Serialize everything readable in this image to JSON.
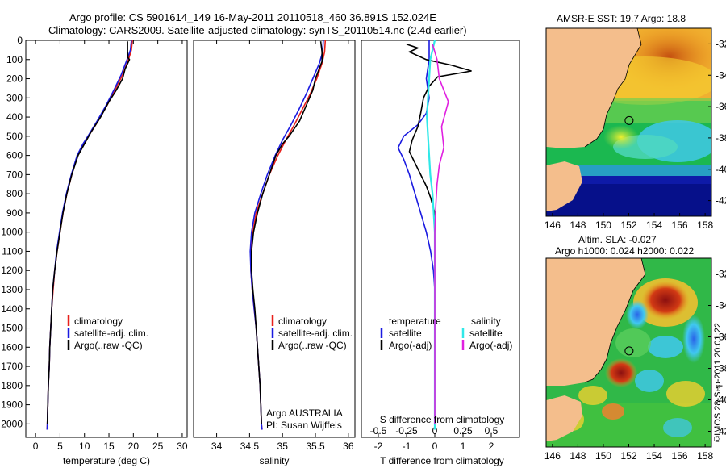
{
  "header": {
    "title_line1": "Argo profile: CS 5901614_149 16-May-2011 20110518_460 36.891S 152.024E",
    "title_line2": "Climatology: CARS2009. Satellite-adjusted climatology: synTS_20110514.nc (2.4d earlier)"
  },
  "map_top": {
    "title": "AMSR-E SST: 19.7 Argo: 18.8"
  },
  "map_bottom": {
    "title_line1": "Altim. SLA: -0.027",
    "title_line2": "Argo h1000: 0.024 h2000: 0.022"
  },
  "stamp": "©IMOS 28-Sep-2011 20:01:22",
  "colors": {
    "climatology": "#e8201c",
    "satellite": "#1a1ae0",
    "argo": "#000000",
    "sal_satellite": "#30e8e8",
    "sal_argo": "#e020e0",
    "land": "#f4be8c"
  },
  "chart_data": [
    {
      "type": "line",
      "panel": "temperature",
      "xlabel": "temperature (deg C)",
      "ylabel": "",
      "xlim": [
        -2,
        31
      ],
      "ylim": [
        2070,
        0
      ],
      "xticks": [
        0,
        5,
        10,
        15,
        20,
        25,
        30
      ],
      "yticks": [
        0,
        100,
        200,
        300,
        400,
        500,
        600,
        700,
        800,
        900,
        1000,
        1100,
        1200,
        1300,
        1400,
        1500,
        1600,
        1700,
        1800,
        1900,
        2000
      ],
      "legend": [
        "climatology",
        "satellite-adj. clim.",
        "Argo(..raw -QC)"
      ],
      "series": [
        {
          "name": "climatology",
          "points": [
            [
              19.8,
              0
            ],
            [
              19.6,
              50
            ],
            [
              19.0,
              100
            ],
            [
              17.8,
              180
            ],
            [
              16.2,
              260
            ],
            [
              14.6,
              340
            ],
            [
              12.8,
              420
            ],
            [
              10.8,
              500
            ],
            [
              9.8,
              540
            ],
            [
              8.6,
              600
            ],
            [
              7.4,
              700
            ],
            [
              6.4,
              800
            ],
            [
              5.6,
              900
            ],
            [
              5.0,
              1000
            ],
            [
              4.4,
              1100
            ],
            [
              3.9,
              1200
            ],
            [
              3.6,
              1300
            ],
            [
              3.3,
              1400
            ],
            [
              3.1,
              1500
            ],
            [
              2.9,
              1600
            ],
            [
              2.8,
              1700
            ],
            [
              2.6,
              1800
            ],
            [
              2.5,
              1900
            ],
            [
              2.4,
              2000
            ],
            [
              2.35,
              2030
            ]
          ]
        },
        {
          "name": "satellite-adj. clim.",
          "points": [
            [
              19.6,
              0
            ],
            [
              19.4,
              50
            ],
            [
              18.7,
              100
            ],
            [
              17.5,
              180
            ],
            [
              16.0,
              260
            ],
            [
              14.4,
              340
            ],
            [
              12.6,
              420
            ],
            [
              10.7,
              500
            ],
            [
              9.7,
              540
            ],
            [
              8.5,
              600
            ],
            [
              7.3,
              700
            ],
            [
              6.3,
              800
            ],
            [
              5.5,
              900
            ],
            [
              4.9,
              1000
            ],
            [
              4.3,
              1100
            ],
            [
              3.9,
              1200
            ],
            [
              3.5,
              1300
            ],
            [
              3.3,
              1400
            ],
            [
              3.1,
              1500
            ],
            [
              2.9,
              1600
            ],
            [
              2.8,
              1700
            ],
            [
              2.6,
              1800
            ],
            [
              2.5,
              1900
            ],
            [
              2.4,
              2000
            ],
            [
              2.35,
              2030
            ]
          ]
        },
        {
          "name": "Argo(..raw -QC)",
          "points": [
            [
              18.8,
              5
            ],
            [
              18.8,
              60
            ],
            [
              18.9,
              90
            ],
            [
              19.2,
              100
            ],
            [
              18.3,
              150
            ],
            [
              17.8,
              200
            ],
            [
              16.5,
              260
            ],
            [
              15.0,
              320
            ],
            [
              13.3,
              400
            ],
            [
              11.3,
              480
            ],
            [
              10.0,
              540
            ],
            [
              8.7,
              600
            ],
            [
              7.4,
              700
            ],
            [
              6.4,
              800
            ],
            [
              5.6,
              900
            ],
            [
              5.0,
              1000
            ],
            [
              4.4,
              1100
            ],
            [
              3.9,
              1200
            ],
            [
              3.5,
              1300
            ],
            [
              3.3,
              1400
            ],
            [
              3.1,
              1500
            ],
            [
              2.9,
              1600
            ],
            [
              2.8,
              1700
            ],
            [
              2.6,
              1800
            ],
            [
              2.5,
              1900
            ],
            [
              2.4,
              2000
            ]
          ]
        }
      ]
    },
    {
      "type": "line",
      "panel": "salinity",
      "xlabel": "salinity",
      "ylabel": "",
      "xlim": [
        33.65,
        36.1
      ],
      "ylim": [
        2070,
        0
      ],
      "xticks": [
        34,
        34.5,
        35,
        35.5,
        36
      ],
      "legend": [
        "climatology",
        "satellite-adj. clim.",
        "Argo(..raw -QC)"
      ],
      "annotation": [
        "Argo AUSTRALIA",
        "PI: Susan Wijffels"
      ],
      "series": [
        {
          "name": "climatology",
          "points": [
            [
              35.65,
              0
            ],
            [
              35.64,
              60
            ],
            [
              35.6,
              120
            ],
            [
              35.52,
              200
            ],
            [
              35.42,
              280
            ],
            [
              35.3,
              360
            ],
            [
              35.18,
              440
            ],
            [
              35.05,
              520
            ],
            [
              34.93,
              600
            ],
            [
              34.8,
              700
            ],
            [
              34.7,
              800
            ],
            [
              34.6,
              900
            ],
            [
              34.55,
              1000
            ],
            [
              34.52,
              1100
            ],
            [
              34.52,
              1200
            ],
            [
              34.54,
              1300
            ],
            [
              34.57,
              1400
            ],
            [
              34.6,
              1500
            ],
            [
              34.62,
              1600
            ],
            [
              34.64,
              1700
            ],
            [
              34.66,
              1800
            ],
            [
              34.67,
              1900
            ],
            [
              34.68,
              2000
            ],
            [
              34.69,
              2030
            ]
          ]
        },
        {
          "name": "satellite-adj. clim.",
          "points": [
            [
              35.62,
              0
            ],
            [
              35.61,
              60
            ],
            [
              35.56,
              120
            ],
            [
              35.46,
              200
            ],
            [
              35.36,
              280
            ],
            [
              35.25,
              360
            ],
            [
              35.13,
              440
            ],
            [
              35.0,
              520
            ],
            [
              34.89,
              600
            ],
            [
              34.77,
              700
            ],
            [
              34.67,
              800
            ],
            [
              34.58,
              900
            ],
            [
              34.53,
              1000
            ],
            [
              34.51,
              1100
            ],
            [
              34.52,
              1200
            ],
            [
              34.54,
              1300
            ],
            [
              34.57,
              1400
            ],
            [
              34.6,
              1500
            ],
            [
              34.62,
              1600
            ],
            [
              34.64,
              1700
            ],
            [
              34.66,
              1800
            ],
            [
              34.67,
              1900
            ],
            [
              34.68,
              2000
            ],
            [
              34.69,
              2030
            ]
          ]
        },
        {
          "name": "Argo(..raw -QC)",
          "points": [
            [
              35.58,
              5
            ],
            [
              35.6,
              60
            ],
            [
              35.6,
              110
            ],
            [
              35.5,
              200
            ],
            [
              35.46,
              260
            ],
            [
              35.36,
              340
            ],
            [
              35.26,
              420
            ],
            [
              35.1,
              500
            ],
            [
              35.0,
              540
            ],
            [
              34.9,
              600
            ],
            [
              34.8,
              700
            ],
            [
              34.7,
              800
            ],
            [
              34.62,
              900
            ],
            [
              34.56,
              1000
            ],
            [
              34.53,
              1100
            ],
            [
              34.53,
              1200
            ],
            [
              34.55,
              1300
            ],
            [
              34.58,
              1400
            ],
            [
              34.6,
              1500
            ],
            [
              34.62,
              1600
            ],
            [
              34.64,
              1700
            ],
            [
              34.66,
              1800
            ],
            [
              34.67,
              1900
            ],
            [
              34.68,
              2000
            ]
          ]
        }
      ]
    },
    {
      "type": "line",
      "panel": "difference",
      "xlabel": "T difference from climatology",
      "xlabel_top": "S difference from climatology",
      "xlim": [
        -2.6,
        3.0
      ],
      "ylim": [
        2070,
        0
      ],
      "xticks": [
        -2,
        -1,
        0,
        1,
        2
      ],
      "xticks_top_labels": [
        "-0.5",
        "-0.25",
        "0",
        "0.25",
        "0.5"
      ],
      "legend_left": {
        "title": "temperature",
        "items": [
          "satellite",
          "Argo(-adj)"
        ]
      },
      "legend_right": {
        "title": "salinity",
        "items": [
          "satellite",
          "Argo(-adj)"
        ]
      },
      "series": [
        {
          "name": "temperature satellite",
          "points": [
            [
              -0.2,
              0
            ],
            [
              -0.2,
              100
            ],
            [
              -0.3,
              200
            ],
            [
              -0.2,
              300
            ],
            [
              -0.3,
              380
            ],
            [
              -0.6,
              440
            ],
            [
              -1.1,
              500
            ],
            [
              -1.3,
              560
            ],
            [
              -1.1,
              620
            ],
            [
              -0.9,
              700
            ],
            [
              -0.7,
              800
            ],
            [
              -0.5,
              900
            ],
            [
              -0.3,
              1000
            ],
            [
              -0.15,
              1100
            ],
            [
              -0.05,
              1200
            ],
            [
              0,
              1300
            ],
            [
              0,
              2030
            ]
          ]
        },
        {
          "name": "temperature Argo(-adj)",
          "points": [
            [
              -1.0,
              20
            ],
            [
              -0.6,
              40
            ],
            [
              -0.9,
              60
            ],
            [
              -0.3,
              100
            ],
            [
              0.6,
              130
            ],
            [
              1.3,
              160
            ],
            [
              0.1,
              190
            ],
            [
              -0.2,
              240
            ],
            [
              -0.4,
              300
            ],
            [
              -0.5,
              380
            ],
            [
              -0.6,
              450
            ],
            [
              -0.8,
              520
            ],
            [
              -0.9,
              580
            ],
            [
              -0.7,
              640
            ],
            [
              -0.5,
              700
            ],
            [
              -0.3,
              760
            ],
            [
              -0.15,
              820
            ],
            [
              0,
              900
            ],
            [
              0,
              2000
            ]
          ]
        },
        {
          "name": "salinity satellite",
          "points": [
            [
              0,
              0
            ],
            [
              -0.04,
              100
            ],
            [
              -0.05,
              200
            ],
            [
              -0.06,
              300
            ],
            [
              -0.07,
              400
            ],
            [
              -0.06,
              500
            ],
            [
              -0.05,
              600
            ],
            [
              -0.04,
              700
            ],
            [
              -0.02,
              800
            ],
            [
              -0.01,
              900
            ],
            [
              0,
              1000
            ],
            [
              0,
              2030
            ]
          ]
        },
        {
          "name": "salinity Argo(-adj)",
          "points": [
            [
              -0.02,
              20
            ],
            [
              0.02,
              100
            ],
            [
              0.04,
              200
            ],
            [
              0.12,
              320
            ],
            [
              0.06,
              450
            ],
            [
              0.08,
              560
            ],
            [
              0.04,
              650
            ],
            [
              0.02,
              750
            ],
            [
              0.01,
              850
            ],
            [
              0,
              1000
            ],
            [
              0,
              2000
            ]
          ]
        }
      ]
    },
    {
      "type": "heatmap",
      "panel": "map-sst",
      "title": "AMSR-E SST: 19.7 Argo: 18.8",
      "xlim": [
        145.5,
        158.5
      ],
      "ylim": [
        -43,
        -31
      ],
      "xticks": [
        146,
        148,
        150,
        152,
        154,
        156,
        158
      ],
      "yticks": [
        -32,
        -34,
        -36,
        -38,
        -40,
        -42
      ],
      "argo_position": {
        "lon": 152.024,
        "lat": -36.891
      }
    },
    {
      "type": "heatmap",
      "panel": "map-sla",
      "title": "Altim. SLA: -0.027",
      "xlim": [
        145.5,
        158.5
      ],
      "ylim": [
        -43,
        -31
      ],
      "xticks": [
        146,
        148,
        150,
        152,
        154,
        156,
        158
      ],
      "yticks": [
        -32,
        -34,
        -36,
        -38,
        -40,
        -42
      ],
      "argo_position": {
        "lon": 152.024,
        "lat": -36.891
      }
    }
  ]
}
